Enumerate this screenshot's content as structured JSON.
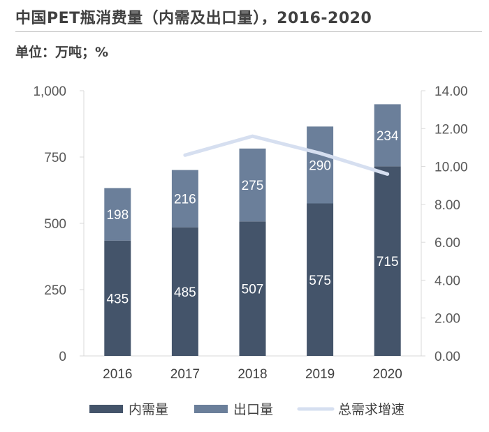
{
  "header": {
    "title": "中国PET瓶消费量（内需及出口量），2016-2020",
    "unit": "单位：万吨；%"
  },
  "chart_data": {
    "type": "bar",
    "stacked": true,
    "categories": [
      "2016",
      "2017",
      "2018",
      "2019",
      "2020"
    ],
    "series": [
      {
        "name": "内需量",
        "kind": "bar",
        "axis": "left",
        "color": "#44546a",
        "values": [
          435,
          485,
          507,
          575,
          715
        ]
      },
      {
        "name": "出口量",
        "kind": "bar",
        "axis": "left",
        "color": "#6b7f9a",
        "values": [
          198,
          216,
          275,
          290,
          234
        ]
      },
      {
        "name": "总需求增速",
        "kind": "line",
        "axis": "right",
        "color": "#d6dff0",
        "values": [
          null,
          10.6,
          11.6,
          10.7,
          9.6
        ]
      }
    ],
    "ylim": [
      0,
      1000
    ],
    "yticks": [
      "0",
      "250",
      "500",
      "750",
      "1,000"
    ],
    "y2lim": [
      0,
      14
    ],
    "y2ticks": [
      "0.00",
      "2.00",
      "4.00",
      "6.00",
      "8.00",
      "10.00",
      "12.00",
      "14.00"
    ],
    "legend_position": "bottom"
  }
}
